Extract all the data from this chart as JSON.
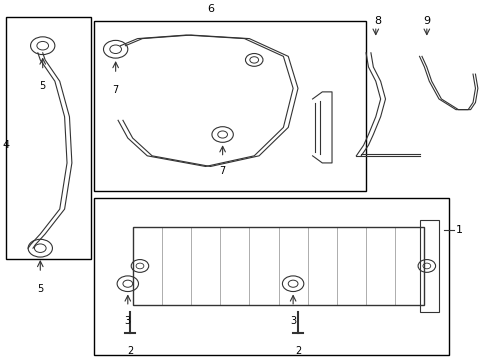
{
  "bg_color": "#ffffff",
  "line_color": "#333333",
  "box_color": "#000000",
  "label_color": "#000000",
  "fig_width": 4.89,
  "fig_height": 3.6,
  "dpi": 100
}
